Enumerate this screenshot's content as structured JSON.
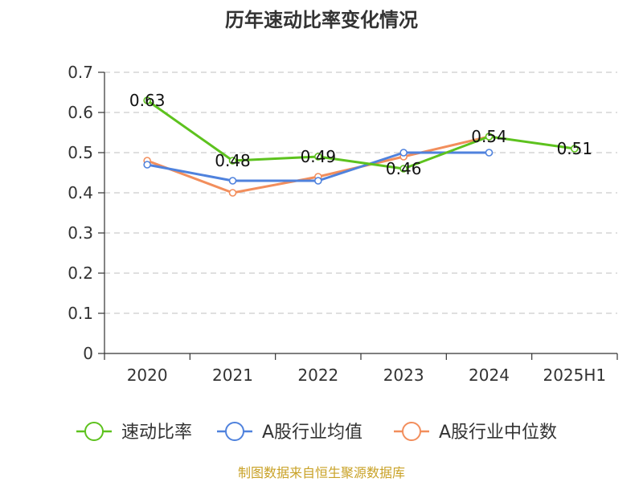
{
  "chart_data": {
    "type": "line",
    "title": "历年速动比率变化情况",
    "categories": [
      "2020",
      "2021",
      "2022",
      "2023",
      "2024",
      "2025H1"
    ],
    "ylim": [
      0,
      0.7
    ],
    "yticks": [
      "0",
      "0.1",
      "0.2",
      "0.3",
      "0.4",
      "0.5",
      "0.6",
      "0.7"
    ],
    "grid": true,
    "legend_position": "bottom",
    "series": [
      {
        "name": "速动比率",
        "color": "#5dc21e",
        "values": [
          0.63,
          0.48,
          0.49,
          0.46,
          0.54,
          0.51
        ],
        "labels": [
          "0.63",
          "0.48",
          "0.49",
          "0.46",
          "0.54",
          "0.51"
        ]
      },
      {
        "name": "A股行业均值",
        "color": "#4f82dd",
        "values": [
          0.47,
          0.43,
          0.43,
          0.5,
          0.5,
          null
        ]
      },
      {
        "name": "A股行业中位数",
        "color": "#f28e5c",
        "values": [
          0.48,
          0.4,
          0.44,
          0.49,
          0.54,
          null
        ]
      }
    ]
  },
  "source_text": "制图数据来自恒生聚源数据库"
}
